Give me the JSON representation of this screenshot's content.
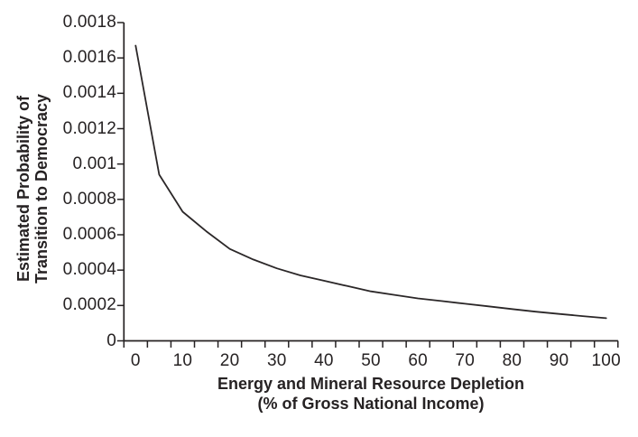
{
  "figure": {
    "background": "#ffffff",
    "text_color": "#262223",
    "axis_color": "#262223",
    "curve_color": "#2b2728"
  },
  "chart_data": {
    "type": "line",
    "title": "",
    "xlabel": "Energy and Mineral Resource Depletion (% of Gross National Income)",
    "xlabel_lines": [
      "Energy and Mineral Resource Depletion",
      "(% of Gross National Income)"
    ],
    "ylabel": "Estimated Probability of Transition to Democracy",
    "ylabel_lines": [
      "Estimated Probability of",
      "Transition to Democracy"
    ],
    "xlim": [
      0,
      100
    ],
    "ylim": [
      0,
      0.0018
    ],
    "grid": false,
    "legend": "none",
    "x_tick_label_values": [
      0,
      10,
      20,
      30,
      40,
      50,
      60,
      70,
      80,
      90,
      100
    ],
    "x_tick_labels": [
      "0",
      "10",
      "20",
      "30",
      "40",
      "50",
      "60",
      "70",
      "80",
      "90",
      "100"
    ],
    "x_minor_tick_step": 5,
    "y_tick_values": [
      0,
      0.0002,
      0.0004,
      0.0006,
      0.0008,
      0.001,
      0.0012,
      0.0014,
      0.0016,
      0.0018
    ],
    "y_tick_labels": [
      "0",
      "0.0002",
      "0.0004",
      "0.0006",
      "0.0008",
      "0.001",
      "0.0012",
      "0.0014",
      "0.0016",
      "0.0018"
    ],
    "series": [
      {
        "name": "estimated-probability-of-transition-to-democracy",
        "x": [
          0,
          5,
          10,
          15,
          20,
          25,
          30,
          35,
          40,
          45,
          50,
          55,
          60,
          65,
          70,
          75,
          80,
          85,
          90,
          95,
          100
        ],
        "y": [
          0.00167,
          0.00094,
          0.00073,
          0.00062,
          0.00052,
          0.00046,
          0.00041,
          0.00037,
          0.00034,
          0.00031,
          0.00028,
          0.00026,
          0.00024,
          0.000225,
          0.00021,
          0.000195,
          0.00018,
          0.000165,
          0.000152,
          0.00014,
          0.000128
        ]
      }
    ]
  }
}
